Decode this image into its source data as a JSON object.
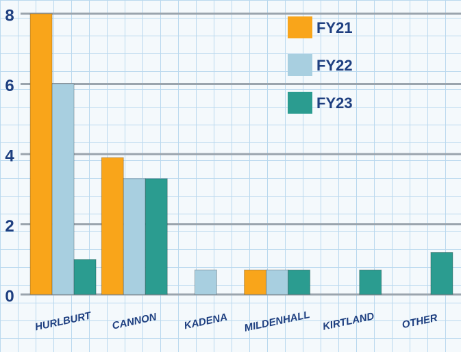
{
  "chart_data": {
    "type": "bar",
    "categories": [
      "HURLBURT",
      "CANNON",
      "KADENA",
      "MILDENHALL",
      "KIRTLAND",
      "OTHER"
    ],
    "series": [
      {
        "name": "FY21",
        "color": "#f9a51a",
        "values": [
          8,
          3.9,
          0,
          0.7,
          0,
          0
        ]
      },
      {
        "name": "FY22",
        "color": "#a8cfe0",
        "values": [
          6,
          3.3,
          0.7,
          0.7,
          0,
          0
        ]
      },
      {
        "name": "FY23",
        "color": "#2b9c90",
        "values": [
          1,
          3.3,
          0,
          0.7,
          0.7,
          1.2
        ]
      }
    ],
    "ylim": [
      0,
      8
    ],
    "yticks": [
      0,
      2,
      4,
      6,
      8
    ],
    "grid": true,
    "legend": "top-right"
  }
}
